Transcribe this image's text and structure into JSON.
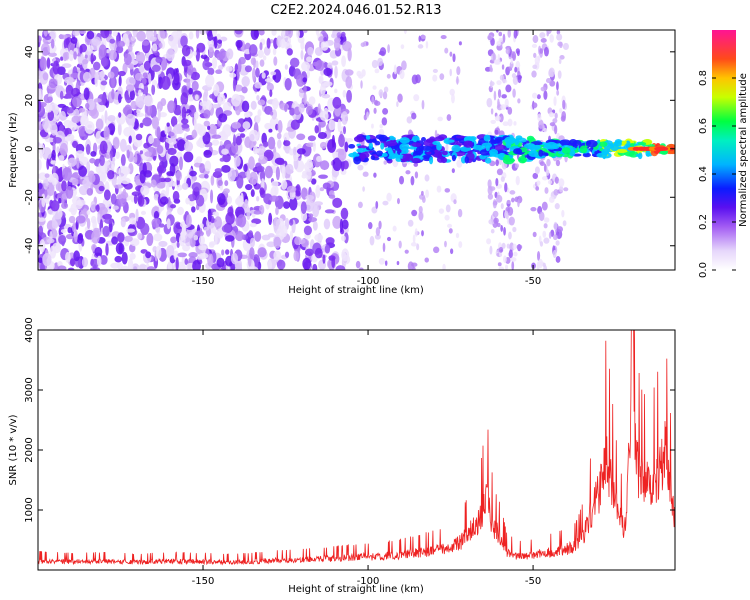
{
  "title": "C2E2.2024.046.01.52.R13",
  "chart_data": [
    {
      "type": "heatmap",
      "name": "spectrogram",
      "xlabel": "Height of straight line (km)",
      "ylabel": "Frequency (Hz)",
      "xlim": [
        -200,
        -7
      ],
      "ylim": [
        -50,
        49
      ],
      "xticks": [
        -150,
        -100,
        -50
      ],
      "yticks": [
        -40,
        -20,
        0,
        20,
        40
      ],
      "colorbar": {
        "label": "Normalized spectral amplitude",
        "range": [
          0.0,
          1.0
        ],
        "ticks": [
          0.0,
          0.2,
          0.4,
          0.6,
          0.8
        ],
        "colormap": [
          "#ffffff",
          "#c9a8f8",
          "#8b2cf0",
          "#1a1aff",
          "#00c8ff",
          "#00ff6a",
          "#d8ff00",
          "#ffb000",
          "#ff2a2a",
          "#ff1493"
        ]
      },
      "signal_track": {
        "frequency_hz": 0,
        "appears_above_height_km": -105,
        "peak_near_height_km": [
          -20,
          -8
        ]
      }
    },
    {
      "type": "line",
      "name": "snr",
      "xlabel": "Height of straight line (km)",
      "ylabel": "SNR (10 * v/v)",
      "xlim": [
        -200,
        -7
      ],
      "ylim": [
        0,
        4000
      ],
      "xticks": [
        -150,
        -100,
        -50
      ],
      "yticks": [
        1000,
        2000,
        3000,
        4000
      ],
      "color": "#ee2222",
      "series": [
        {
          "name": "SNR",
          "x": [
            -200,
            -190,
            -180,
            -170,
            -160,
            -150,
            -140,
            -130,
            -120,
            -110,
            -100,
            -95,
            -90,
            -85,
            -80,
            -75,
            -72,
            -70,
            -68,
            -66,
            -64,
            -62,
            -60,
            -58,
            -55,
            -50,
            -45,
            -40,
            -37,
            -35,
            -32,
            -30,
            -28,
            -26,
            -24,
            -22,
            -20,
            -19,
            -18,
            -16,
            -14,
            -12,
            -10,
            -9,
            -8,
            -7
          ],
          "values": [
            200,
            180,
            190,
            170,
            190,
            180,
            170,
            200,
            220,
            250,
            280,
            300,
            330,
            370,
            420,
            480,
            600,
            750,
            900,
            1100,
            1600,
            900,
            700,
            400,
            300,
            330,
            380,
            450,
            500,
            700,
            1300,
            1700,
            2500,
            1800,
            1100,
            900,
            4000,
            2800,
            2100,
            1800,
            1900,
            2100,
            2550,
            2000,
            1500,
            1200
          ]
        }
      ]
    }
  ]
}
